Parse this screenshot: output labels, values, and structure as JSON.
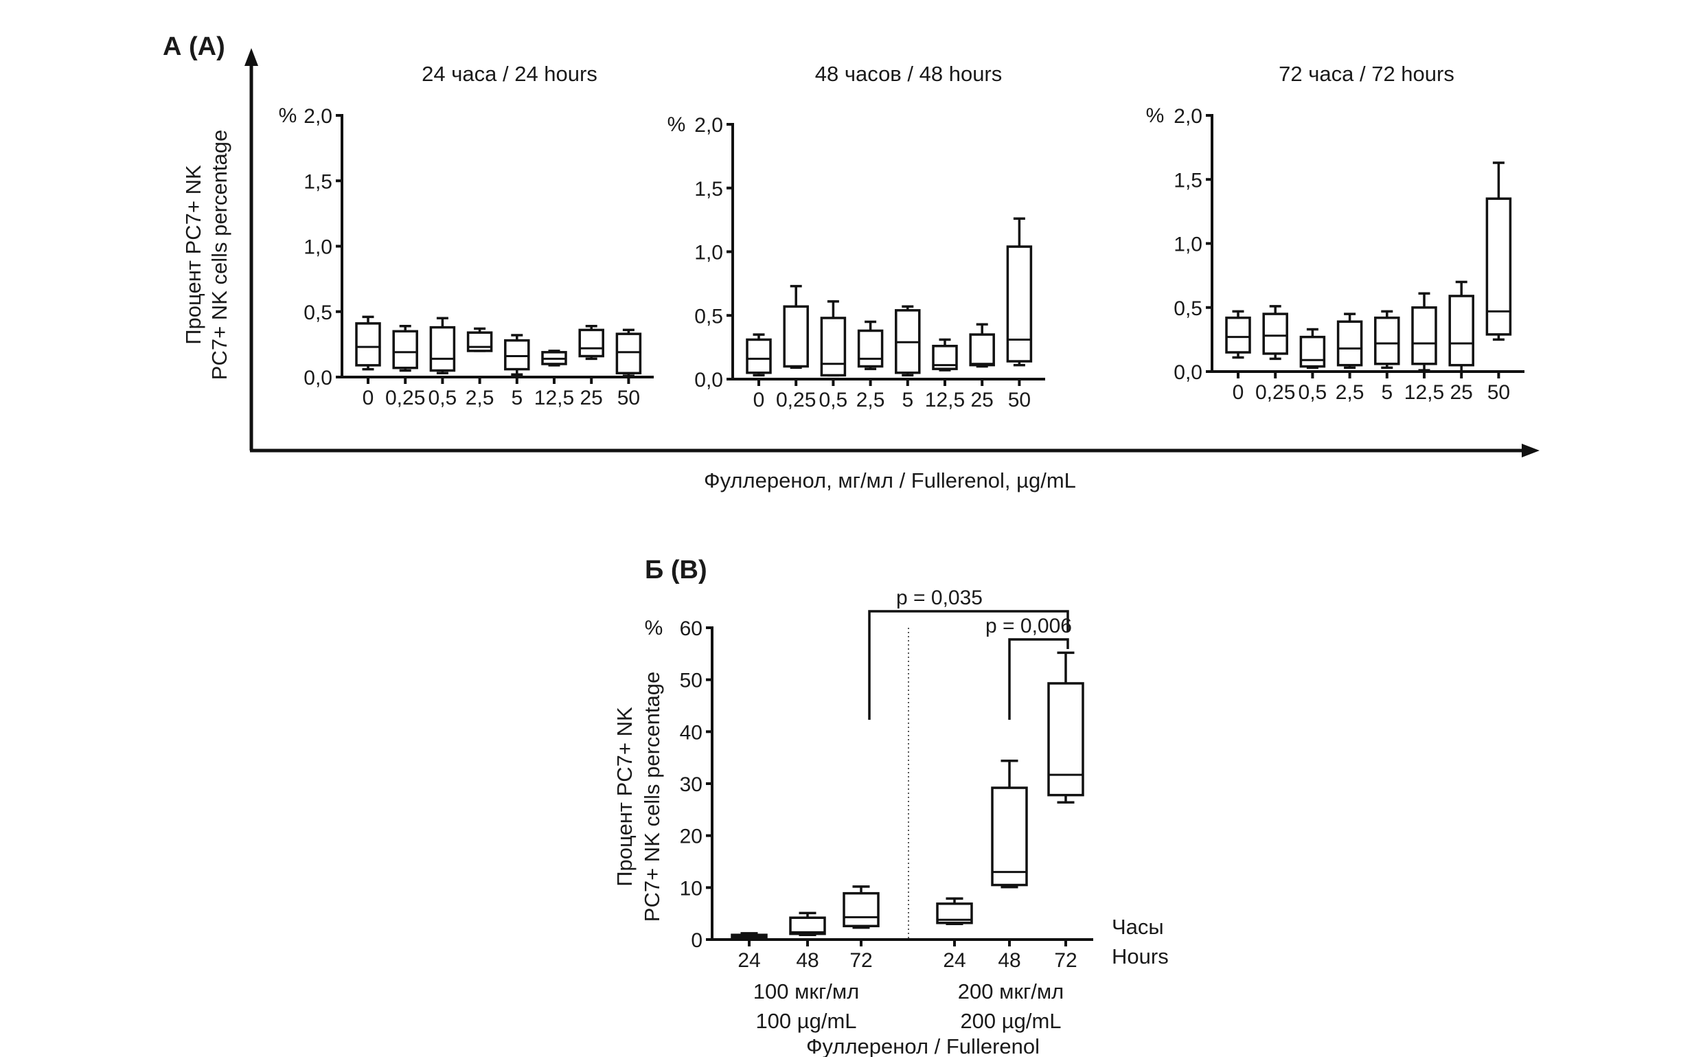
{
  "panel_a": {
    "label": "А (A)",
    "y_label_line1": "Процент PC7+ NK",
    "y_label_line2": "PC7+ NK cells percentage",
    "x_label": "Фуллеренол, мг/мл / Fullerenol, µg/mL"
  },
  "panel_b": {
    "label": "Б (B)",
    "y_label_line1": "Процент PC7+ NK",
    "y_label_line2": "PC7+ NK cells percentage",
    "hours_ru": "Часы",
    "hours_en": "Hours",
    "group1_ru": "100 мкг/мл",
    "group1_en": "100 µg/mL",
    "group2_ru": "200 мкг/мл",
    "group2_en": "200 µg/mL",
    "x_label": "Фуллеренол / Fullerenol"
  },
  "chart_data": [
    {
      "type": "box",
      "title": "24 часа / 24 hours",
      "y_unit": "%",
      "ylim": [
        0,
        2
      ],
      "yticks": [
        0,
        0.5,
        1,
        1.5,
        2
      ],
      "ytick_labels": [
        "0,0",
        "0,5",
        "1,0",
        "1,5",
        "2,0"
      ],
      "categories": [
        "0",
        "0,25",
        "0,5",
        "2,5",
        "5",
        "12,5",
        "25",
        "50"
      ],
      "boxes": [
        {
          "min": 0.06,
          "q1": 0.09,
          "median": 0.23,
          "q3": 0.41,
          "max": 0.46
        },
        {
          "min": 0.05,
          "q1": 0.07,
          "median": 0.19,
          "q3": 0.35,
          "max": 0.39
        },
        {
          "min": 0.03,
          "q1": 0.05,
          "median": 0.14,
          "q3": 0.38,
          "max": 0.45
        },
        {
          "min": 0.2,
          "q1": 0.2,
          "median": 0.23,
          "q3": 0.34,
          "max": 0.37
        },
        {
          "min": 0.02,
          "q1": 0.06,
          "median": 0.16,
          "q3": 0.28,
          "max": 0.32
        },
        {
          "min": 0.09,
          "q1": 0.1,
          "median": 0.14,
          "q3": 0.19,
          "max": 0.2
        },
        {
          "min": 0.14,
          "q1": 0.16,
          "median": 0.22,
          "q3": 0.36,
          "max": 0.39
        },
        {
          "min": 0.01,
          "q1": 0.03,
          "median": 0.19,
          "q3": 0.33,
          "max": 0.36
        }
      ]
    },
    {
      "type": "box",
      "title": "48 часов / 48 hours",
      "y_unit": "%",
      "ylim": [
        0,
        2
      ],
      "yticks": [
        0,
        0.5,
        1,
        1.5,
        2
      ],
      "ytick_labels": [
        "0,0",
        "0,5",
        "1,0",
        "1,5",
        "2,0"
      ],
      "categories": [
        "0",
        "0,25",
        "0,5",
        "2,5",
        "5",
        "12,5",
        "25",
        "50"
      ],
      "boxes": [
        {
          "min": 0.03,
          "q1": 0.05,
          "median": 0.16,
          "q3": 0.31,
          "max": 0.35
        },
        {
          "min": 0.09,
          "q1": 0.1,
          "median": 0.1,
          "q3": 0.57,
          "max": 0.73
        },
        {
          "min": 0.03,
          "q1": 0.03,
          "median": 0.12,
          "q3": 0.48,
          "max": 0.61
        },
        {
          "min": 0.08,
          "q1": 0.1,
          "median": 0.16,
          "q3": 0.38,
          "max": 0.45
        },
        {
          "min": 0.03,
          "q1": 0.05,
          "median": 0.29,
          "q3": 0.54,
          "max": 0.57
        },
        {
          "min": 0.07,
          "q1": 0.08,
          "median": 0.11,
          "q3": 0.26,
          "max": 0.31
        },
        {
          "min": 0.1,
          "q1": 0.11,
          "median": 0.12,
          "q3": 0.35,
          "max": 0.43
        },
        {
          "min": 0.11,
          "q1": 0.14,
          "median": 0.31,
          "q3": 1.04,
          "max": 1.26
        }
      ]
    },
    {
      "type": "box",
      "title": "72 часа / 72 hours",
      "y_unit": "%",
      "ylim": [
        0,
        2
      ],
      "yticks": [
        0,
        0.5,
        1,
        1.5,
        2
      ],
      "ytick_labels": [
        "0,0",
        "0,5",
        "1,0",
        "1,5",
        "2,0"
      ],
      "categories": [
        "0",
        "0,25",
        "0,5",
        "2,5",
        "5",
        "12,5",
        "25",
        "50"
      ],
      "boxes": [
        {
          "min": 0.11,
          "q1": 0.15,
          "median": 0.27,
          "q3": 0.42,
          "max": 0.47
        },
        {
          "min": 0.1,
          "q1": 0.14,
          "median": 0.28,
          "q3": 0.45,
          "max": 0.51
        },
        {
          "min": 0.03,
          "q1": 0.04,
          "median": 0.09,
          "q3": 0.27,
          "max": 0.33
        },
        {
          "min": 0.03,
          "q1": 0.05,
          "median": 0.18,
          "q3": 0.39,
          "max": 0.45
        },
        {
          "min": 0.03,
          "q1": 0.06,
          "median": 0.22,
          "q3": 0.42,
          "max": 0.47
        },
        {
          "min": 0.01,
          "q1": 0.06,
          "median": 0.22,
          "q3": 0.5,
          "max": 0.61
        },
        {
          "min": 0.0,
          "q1": 0.05,
          "median": 0.22,
          "q3": 0.59,
          "max": 0.7
        },
        {
          "min": 0.25,
          "q1": 0.29,
          "median": 0.47,
          "q3": 1.35,
          "max": 1.63
        }
      ]
    },
    {
      "type": "box",
      "title": "",
      "y_unit": "%",
      "ylim": [
        0,
        60
      ],
      "yticks": [
        0,
        10,
        20,
        30,
        40,
        50,
        60
      ],
      "ytick_labels": [
        "0",
        "10",
        "20",
        "30",
        "40",
        "50",
        "60"
      ],
      "categories": [
        "24",
        "48",
        "72",
        "24",
        "48",
        "72"
      ],
      "groups": [
        "100 µg/mL",
        "100 µg/mL",
        "100 µg/mL",
        "200 µg/mL",
        "200 µg/mL",
        "200 µg/mL"
      ],
      "boxes": [
        {
          "min": 0.3,
          "q1": 0.3,
          "median": 0.6,
          "q3": 0.9,
          "max": 1.2
        },
        {
          "min": 0.9,
          "q1": 1.1,
          "median": 1.4,
          "q3": 4.2,
          "max": 5.1
        },
        {
          "min": 2.3,
          "q1": 2.6,
          "median": 4.3,
          "q3": 8.9,
          "max": 10.2
        },
        {
          "min": 3.0,
          "q1": 3.2,
          "median": 3.8,
          "q3": 6.9,
          "max": 7.9
        },
        {
          "min": 10.1,
          "q1": 10.5,
          "median": 13.0,
          "q3": 29.2,
          "max": 34.4
        },
        {
          "min": 26.4,
          "q1": 27.8,
          "median": 31.7,
          "q3": 49.3,
          "max": 55.2
        }
      ],
      "annotations": [
        {
          "text": "p = 0,035",
          "from": 2,
          "to": 5
        },
        {
          "text": "p = 0,006",
          "from": 4,
          "to": 5
        }
      ]
    }
  ]
}
